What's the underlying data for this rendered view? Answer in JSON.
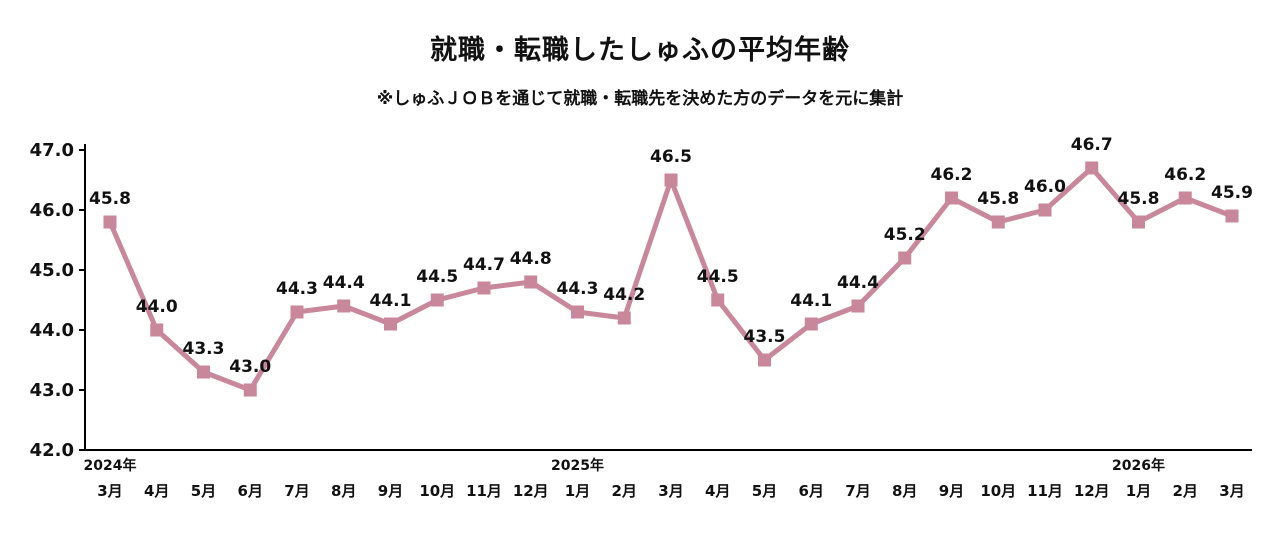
{
  "chart_data": {
    "type": "line",
    "title": "就職・転職したしゅふの平均年齢",
    "subtitle": "※しゅふＪＯＢを通じて就職・転職先を決めた方のデータを元に集計",
    "xlabel": "",
    "ylabel": "",
    "categories": [
      "3月",
      "4月",
      "5月",
      "6月",
      "7月",
      "8月",
      "9月",
      "10月",
      "11月",
      "12月",
      "1月",
      "2月",
      "3月",
      "4月",
      "5月",
      "6月",
      "7月",
      "8月",
      "9月",
      "10月",
      "11月",
      "12月",
      "1月",
      "2月",
      "3月"
    ],
    "values": [
      45.8,
      44.0,
      43.3,
      43.0,
      44.3,
      44.4,
      44.1,
      44.5,
      44.7,
      44.8,
      44.3,
      44.2,
      46.5,
      44.5,
      43.5,
      44.1,
      44.4,
      45.2,
      46.2,
      45.8,
      46.0,
      46.7,
      45.8,
      46.2,
      45.9
    ],
    "year_labels": [
      {
        "index": 0,
        "label": "2024年"
      },
      {
        "index": 10,
        "label": "2025年"
      },
      {
        "index": 22,
        "label": "2026年"
      }
    ],
    "ylim": [
      42.0,
      47.0
    ],
    "yticks": [
      42.0,
      43.0,
      44.0,
      45.0,
      46.0,
      47.0
    ],
    "ytick_labels": [
      "42.0",
      "43.0",
      "44.0",
      "45.0",
      "46.0",
      "47.0"
    ],
    "grid": false,
    "legend": "none",
    "line_color": "#c9879c",
    "marker_shape": "square",
    "label_color": "#111111",
    "axis_color": "#000000",
    "background_color": "#ffffff"
  }
}
